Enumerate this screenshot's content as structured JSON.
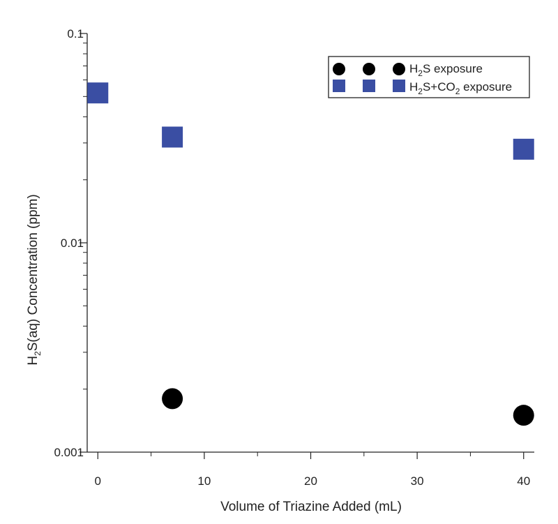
{
  "chart_data": {
    "type": "scatter",
    "xlabel": "Volume of Triazine Added (mL)",
    "ylabel": {
      "prefix": "H",
      "sub": "2",
      "suffix": "S(aq) Concentration (ppm)"
    },
    "xlim": [
      -1,
      41
    ],
    "ylim": [
      0.001,
      0.1
    ],
    "yscale": "log",
    "x_ticks": [
      {
        "value": 0,
        "label": "0"
      },
      {
        "value": 10,
        "label": "10"
      },
      {
        "value": 20,
        "label": "20"
      },
      {
        "value": 30,
        "label": "30"
      },
      {
        "value": 40,
        "label": "40"
      }
    ],
    "y_ticks": [
      {
        "value": 0.1,
        "label": "0.1"
      },
      {
        "value": 0.01,
        "label": "0.01"
      },
      {
        "value": 0.001,
        "label": "0.001"
      }
    ],
    "legend_position": "top-right",
    "series": [
      {
        "name": "H2S exposure",
        "legend_parts": {
          "p1": "H",
          "sub1": "2",
          "p2": "S exposure"
        },
        "marker": "circle",
        "color": "#000000",
        "x": [
          7,
          40
        ],
        "y": [
          0.0018,
          0.0015
        ]
      },
      {
        "name": "H2S+CO2 exposure",
        "legend_parts": {
          "p1": "H",
          "sub1": "2",
          "p2": "S+CO",
          "sub2": "2",
          "p3": " exposure"
        },
        "marker": "square",
        "color": "#3a4ea3",
        "x": [
          0,
          7,
          40
        ],
        "y": [
          0.052,
          0.032,
          0.028
        ]
      }
    ]
  }
}
